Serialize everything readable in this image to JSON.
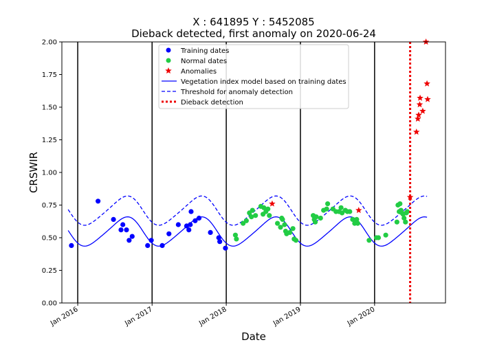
{
  "chart_data": {
    "type": "scatter",
    "title_line1": "X : 641895     Y : 5452085",
    "title_line2": "Dieback detected, first anomaly on 2020-06-24",
    "xlabel": "Date",
    "ylabel": "CRSWIR",
    "xlim": [
      "2015-10-15",
      "2020-12-15"
    ],
    "ylim": [
      0.0,
      2.0
    ],
    "yticks": [
      "0.00",
      "0.25",
      "0.50",
      "0.75",
      "1.00",
      "1.25",
      "1.50",
      "1.75",
      "2.00"
    ],
    "xticks": [
      {
        "date": "2016-01-01",
        "label": "Jan 2016"
      },
      {
        "date": "2017-01-01",
        "label": "Jan 2017"
      },
      {
        "date": "2018-01-01",
        "label": "Jan 2018"
      },
      {
        "date": "2019-01-01",
        "label": "Jan 2019"
      },
      {
        "date": "2020-01-01",
        "label": "Jan 2020"
      }
    ],
    "year_separators": [
      "2016-01-01",
      "2017-01-01",
      "2018-01-01",
      "2019-01-01",
      "2020-01-01"
    ],
    "dieback_detection_date": "2020-06-24",
    "model_curve": {
      "start": "2015-11-15",
      "end": "2020-09-15"
    },
    "threshold_curve": {
      "start": "2015-11-15",
      "end": "2020-09-15"
    },
    "legend": {
      "placement": "upper-center",
      "entries": [
        {
          "key": "training",
          "label": "Training dates"
        },
        {
          "key": "normal",
          "label": "Normal dates"
        },
        {
          "key": "anomaly",
          "label": "Anomalies"
        },
        {
          "key": "model",
          "label": "Vegetation index model based on training dates"
        },
        {
          "key": "threshold",
          "label": "Threshold for anomaly detection"
        },
        {
          "key": "dieback",
          "label": "Dieback detection"
        }
      ]
    },
    "colors": {
      "training": "#0000ff",
      "normal": "#22cc44",
      "anomaly": "#ee0000",
      "model": "#0000ff",
      "threshold": "#0000ff",
      "dieback": "#ee0000",
      "separator": "#000000"
    },
    "series": [
      {
        "key": "training",
        "points": [
          {
            "x": "2015-12-01",
            "y": 0.44
          },
          {
            "x": "2016-04-10",
            "y": 0.78
          },
          {
            "x": "2016-06-25",
            "y": 0.64
          },
          {
            "x": "2016-08-01",
            "y": 0.56
          },
          {
            "x": "2016-08-10",
            "y": 0.6
          },
          {
            "x": "2016-08-28",
            "y": 0.56
          },
          {
            "x": "2016-09-10",
            "y": 0.48
          },
          {
            "x": "2016-09-25",
            "y": 0.51
          },
          {
            "x": "2016-12-10",
            "y": 0.44
          },
          {
            "x": "2016-12-28",
            "y": 0.48
          },
          {
            "x": "2017-02-20",
            "y": 0.44
          },
          {
            "x": "2017-03-25",
            "y": 0.53
          },
          {
            "x": "2017-05-10",
            "y": 0.6
          },
          {
            "x": "2017-06-20",
            "y": 0.59
          },
          {
            "x": "2017-07-01",
            "y": 0.56
          },
          {
            "x": "2017-07-08",
            "y": 0.6
          },
          {
            "x": "2017-07-12",
            "y": 0.7
          },
          {
            "x": "2017-08-01",
            "y": 0.63
          },
          {
            "x": "2017-08-20",
            "y": 0.65
          },
          {
            "x": "2017-10-15",
            "y": 0.54
          },
          {
            "x": "2017-11-25",
            "y": 0.5
          },
          {
            "x": "2017-11-30",
            "y": 0.47
          },
          {
            "x": "2017-12-28",
            "y": 0.42
          }
        ]
      },
      {
        "key": "normal",
        "points": [
          {
            "x": "2018-02-15",
            "y": 0.52
          },
          {
            "x": "2018-02-20",
            "y": 0.49
          },
          {
            "x": "2018-03-25",
            "y": 0.61
          },
          {
            "x": "2018-04-10",
            "y": 0.63
          },
          {
            "x": "2018-04-25",
            "y": 0.69
          },
          {
            "x": "2018-05-05",
            "y": 0.66
          },
          {
            "x": "2018-05-10",
            "y": 0.71
          },
          {
            "x": "2018-05-25",
            "y": 0.67
          },
          {
            "x": "2018-06-20",
            "y": 0.74
          },
          {
            "x": "2018-07-01",
            "y": 0.68
          },
          {
            "x": "2018-07-05",
            "y": 0.73
          },
          {
            "x": "2018-07-15",
            "y": 0.7
          },
          {
            "x": "2018-07-25",
            "y": 0.72
          },
          {
            "x": "2018-08-01",
            "y": 0.67
          },
          {
            "x": "2018-09-10",
            "y": 0.61
          },
          {
            "x": "2018-09-25",
            "y": 0.58
          },
          {
            "x": "2018-10-01",
            "y": 0.65
          },
          {
            "x": "2018-10-05",
            "y": 0.64
          },
          {
            "x": "2018-10-15",
            "y": 0.6
          },
          {
            "x": "2018-10-20",
            "y": 0.55
          },
          {
            "x": "2018-10-25",
            "y": 0.53
          },
          {
            "x": "2018-11-10",
            "y": 0.54
          },
          {
            "x": "2018-11-25",
            "y": 0.57
          },
          {
            "x": "2018-12-01",
            "y": 0.49
          },
          {
            "x": "2018-12-10",
            "y": 0.48
          },
          {
            "x": "2019-03-05",
            "y": 0.67
          },
          {
            "x": "2019-03-10",
            "y": 0.64
          },
          {
            "x": "2019-03-15",
            "y": 0.62
          },
          {
            "x": "2019-03-20",
            "y": 0.66
          },
          {
            "x": "2019-04-10",
            "y": 0.65
          },
          {
            "x": "2019-04-25",
            "y": 0.71
          },
          {
            "x": "2019-05-10",
            "y": 0.72
          },
          {
            "x": "2019-05-15",
            "y": 0.76
          },
          {
            "x": "2019-06-10",
            "y": 0.72
          },
          {
            "x": "2019-06-25",
            "y": 0.7
          },
          {
            "x": "2019-07-10",
            "y": 0.7
          },
          {
            "x": "2019-07-20",
            "y": 0.73
          },
          {
            "x": "2019-07-25",
            "y": 0.69
          },
          {
            "x": "2019-08-10",
            "y": 0.71
          },
          {
            "x": "2019-08-20",
            "y": 0.7
          },
          {
            "x": "2019-09-01",
            "y": 0.7
          },
          {
            "x": "2019-09-15",
            "y": 0.64
          },
          {
            "x": "2019-09-25",
            "y": 0.61
          },
          {
            "x": "2019-10-05",
            "y": 0.64
          },
          {
            "x": "2019-10-10",
            "y": 0.61
          },
          {
            "x": "2019-12-05",
            "y": 0.48
          },
          {
            "x": "2020-01-10",
            "y": 0.5
          },
          {
            "x": "2020-01-20",
            "y": 0.5
          },
          {
            "x": "2020-02-25",
            "y": 0.52
          },
          {
            "x": "2020-04-20",
            "y": 0.62
          },
          {
            "x": "2020-04-25",
            "y": 0.75
          },
          {
            "x": "2020-05-01",
            "y": 0.7
          },
          {
            "x": "2020-05-05",
            "y": 0.76
          },
          {
            "x": "2020-05-10",
            "y": 0.71
          },
          {
            "x": "2020-05-15",
            "y": 0.69
          },
          {
            "x": "2020-05-20",
            "y": 0.68
          },
          {
            "x": "2020-05-25",
            "y": 0.65
          },
          {
            "x": "2020-06-01",
            "y": 0.62
          },
          {
            "x": "2020-06-05",
            "y": 0.69
          },
          {
            "x": "2020-06-10",
            "y": 0.7
          }
        ]
      },
      {
        "key": "anomaly",
        "points": [
          {
            "x": "2018-08-15",
            "y": 0.76
          },
          {
            "x": "2019-10-15",
            "y": 0.71
          },
          {
            "x": "2020-06-24",
            "y": 0.81
          },
          {
            "x": "2020-07-25",
            "y": 1.31
          },
          {
            "x": "2020-08-01",
            "y": 1.41
          },
          {
            "x": "2020-08-05",
            "y": 1.44
          },
          {
            "x": "2020-08-10",
            "y": 1.52
          },
          {
            "x": "2020-08-12",
            "y": 1.57
          },
          {
            "x": "2020-08-25",
            "y": 1.47
          },
          {
            "x": "2020-09-10",
            "y": 2.0
          },
          {
            "x": "2020-09-15",
            "y": 1.68
          },
          {
            "x": "2020-09-18",
            "y": 1.56
          }
        ]
      }
    ]
  }
}
